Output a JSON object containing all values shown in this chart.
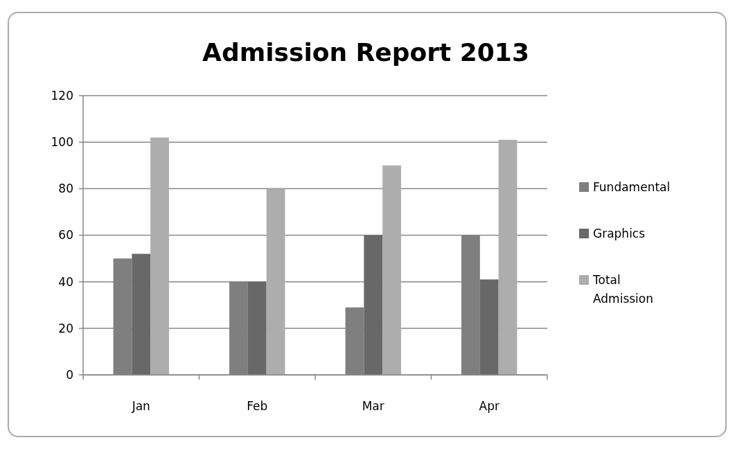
{
  "chart_data": {
    "type": "bar",
    "title": "Admission Report 2013",
    "categories": [
      "Jan",
      "Feb",
      "Mar",
      "Apr"
    ],
    "series": [
      {
        "name": "Fundamental",
        "color": "#7f7f7f",
        "values": [
          50,
          40,
          29,
          60
        ]
      },
      {
        "name": "Graphics",
        "color": "#686868",
        "values": [
          52,
          40,
          60,
          41
        ]
      },
      {
        "name": "Total Admission",
        "color": "#adadad",
        "values": [
          102,
          80,
          90,
          101
        ]
      }
    ],
    "ylim": [
      0,
      120
    ],
    "yticks": [
      0,
      20,
      40,
      60,
      80,
      100,
      120
    ],
    "grid": "y",
    "legend": "right"
  }
}
